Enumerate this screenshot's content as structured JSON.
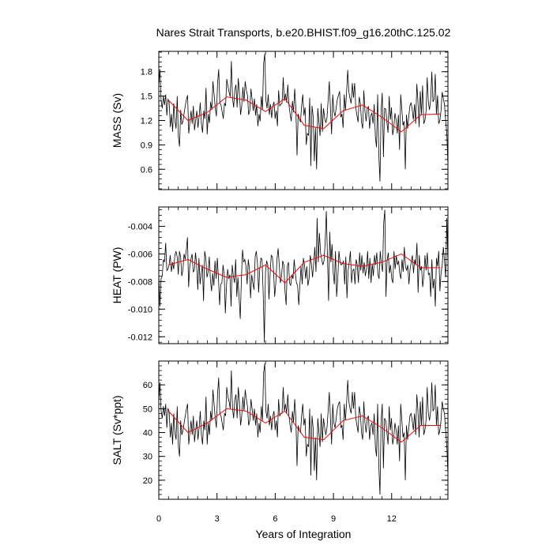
{
  "title": "Nares Strait Transports, b.e20.BHIST.f09_g16.20thC.125.02",
  "xlabel": "Years of Integration",
  "colors": {
    "monthly": "#000000",
    "annual": "#ff0000",
    "frame": "#000000"
  },
  "chart_data": [
    {
      "type": "line",
      "ylabel": "MASS (Sv)",
      "xlim": [
        0,
        14.9
      ],
      "ylim": [
        0.35,
        2.05
      ],
      "yticks": [
        "0.6",
        "0.9",
        "1.2",
        "1.5",
        "1.8"
      ],
      "xticks": [
        "0",
        "3",
        "6",
        "9",
        "12"
      ],
      "monthly_values": [
        1.62,
        1.83,
        1.45,
        1.35,
        1.5,
        1.39,
        1.52,
        1.26,
        1.46,
        1.43,
        1.12,
        1.28,
        1.06,
        1.41,
        1.2,
        1.1,
        1.5,
        1.0,
        0.88,
        1.33,
        1.15,
        1.19,
        1.29,
        1.38,
        1.46,
        1.51,
        1.04,
        1.18,
        1.32,
        1.16,
        1.38,
        1.08,
        1.2,
        1.32,
        1.11,
        1.25,
        1.42,
        1.16,
        1.05,
        1.32,
        1.22,
        1.6,
        1.03,
        1.28,
        1.17,
        1.43,
        1.33,
        1.68,
        1.52,
        1.36,
        1.25,
        1.65,
        1.83,
        1.42,
        1.39,
        1.31,
        1.22,
        1.41,
        1.38,
        1.71,
        1.62,
        1.55,
        1.49,
        1.93,
        1.48,
        1.36,
        1.58,
        1.64,
        1.36,
        1.72,
        1.54,
        1.27,
        1.38,
        1.61,
        1.43,
        1.68,
        1.57,
        1.51,
        1.27,
        1.32,
        1.59,
        1.46,
        1.32,
        1.47,
        1.26,
        1.4,
        1.13,
        1.28,
        1.19,
        1.5,
        1.33,
        1.9,
        2.02,
        1.45,
        1.35,
        1.52,
        1.27,
        1.4,
        1.23,
        1.38,
        1.43,
        1.22,
        1.32,
        1.13,
        1.57,
        1.38,
        1.4,
        1.41,
        1.73,
        1.44,
        1.53,
        1.42,
        1.64,
        1.39,
        1.28,
        1.19,
        1.44,
        1.3,
        1.59,
        1.35,
        0.77,
        1.28,
        1.22,
        1.18,
        1.38,
        1.52,
        1.26,
        1.36,
        0.9,
        1.04,
        1.02,
        1.48,
        0.64,
        1.38,
        1.25,
        0.7,
        1.11,
        0.6,
        1.35,
        1.18,
        1.01,
        1.41,
        1.06,
        1.35,
        1.23,
        1.17,
        1.23,
        1.45,
        1.68,
        1.35,
        1.03,
        1.52,
        1.31,
        1.25,
        1.36,
        1.46,
        1.51,
        1.56,
        1.24,
        1.28,
        1.11,
        1.52,
        1.32,
        1.54,
        1.82,
        1.55,
        1.47,
        1.41,
        1.66,
        1.48,
        1.66,
        1.36,
        1.26,
        1.18,
        1.49,
        1.41,
        1.18,
        1.1,
        1.57,
        1.31,
        1.19,
        1.35,
        1.37,
        1.1,
        1.26,
        1.29,
        1.16,
        1.4,
        1.0,
        0.87,
        1.52,
        0.78,
        0.45,
        1.32,
        1.54,
        0.75,
        1.35,
        1.34,
        1.18,
        1.05,
        1.5,
        1.21,
        1.36,
        1.02,
        1.11,
        1.29,
        1.21,
        1.04,
        1.27,
        0.84,
        1.52,
        1.33,
        1.14,
        1.19,
        0.6,
        1.27,
        1.1,
        1.25,
        1.38,
        1.42,
        1.33,
        1.21,
        1.4,
        1.16,
        1.65,
        1.43,
        1.12,
        1.56,
        1.27,
        1.63,
        1.16,
        1.2,
        1.31,
        1.73,
        1.42,
        1.33,
        1.45,
        1.8,
        1.43,
        1.46,
        1.77,
        1.27,
        1.51,
        1.16,
        1.2,
        1.32,
        1.55,
        1.47,
        1.4,
        1.2,
        1.05,
        0.65
      ],
      "annual_x": [
        0.5,
        1.5,
        2.5,
        3.5,
        4.5,
        5.5,
        6.5,
        7.5,
        8.5,
        9.5,
        10.5,
        11.5,
        12.5,
        13.5,
        14.5
      ],
      "annual_values": [
        1.45,
        1.2,
        1.3,
        1.49,
        1.45,
        1.31,
        1.47,
        1.14,
        1.1,
        1.32,
        1.39,
        1.24,
        1.06,
        1.27,
        1.28
      ]
    },
    {
      "type": "line",
      "ylabel": "HEAT (PW)",
      "xlim": [
        0,
        14.9
      ],
      "ylim": [
        -0.0125,
        -0.0026
      ],
      "yticks": [
        "-0.012",
        "-0.010",
        "-0.008",
        "-0.006",
        "-0.004"
      ],
      "xticks": [
        "0",
        "3",
        "6",
        "9",
        "12"
      ],
      "monthly_values": [
        -0.0075,
        -0.0098,
        -0.0078,
        -0.0076,
        -0.0064,
        -0.0066,
        -0.0052,
        -0.0072,
        -0.0071,
        -0.0068,
        -0.0061,
        -0.0073,
        -0.0066,
        -0.0071,
        -0.0061,
        -0.0058,
        -0.0062,
        -0.0075,
        -0.0058,
        -0.0062,
        -0.0076,
        -0.0072,
        -0.006,
        -0.0064,
        -0.0057,
        -0.0048,
        -0.0084,
        -0.0069,
        -0.0064,
        -0.006,
        -0.0073,
        -0.0072,
        -0.0059,
        -0.0068,
        -0.0086,
        -0.0063,
        -0.0082,
        -0.0074,
        -0.0068,
        -0.0094,
        -0.0058,
        -0.0063,
        -0.0077,
        -0.0073,
        -0.0062,
        -0.0079,
        -0.0087,
        -0.0074,
        -0.0083,
        -0.0065,
        -0.0078,
        -0.0063,
        -0.0077,
        -0.0097,
        -0.0082,
        -0.0081,
        -0.0068,
        -0.0075,
        -0.0103,
        -0.0083,
        -0.0071,
        -0.0078,
        -0.0075,
        -0.0098,
        -0.0068,
        -0.0076,
        -0.0081,
        -0.0064,
        -0.0091,
        -0.0077,
        -0.0092,
        -0.0107,
        -0.0078,
        -0.0057,
        -0.0066,
        -0.0064,
        -0.0069,
        -0.0082,
        -0.0064,
        -0.0071,
        -0.0092,
        -0.0075,
        -0.0081,
        -0.0086,
        -0.0062,
        -0.0058,
        -0.0067,
        -0.0088,
        -0.0071,
        -0.0063,
        -0.0064,
        -0.0089,
        -0.0124,
        -0.0073,
        -0.0065,
        -0.0068,
        -0.0093,
        -0.0075,
        -0.0061,
        -0.0062,
        -0.0072,
        -0.0091,
        -0.0081,
        -0.0064,
        -0.0056,
        -0.0068,
        -0.0081,
        -0.0076,
        -0.0065,
        -0.0068,
        -0.0087,
        -0.0097,
        -0.0069,
        -0.0066,
        -0.0081,
        -0.0083,
        -0.0075,
        -0.0078,
        -0.0064,
        -0.0074,
        -0.0081,
        -0.0083,
        -0.0097,
        -0.0082,
        -0.0069,
        -0.0082,
        -0.0063,
        -0.0068,
        -0.0078,
        -0.0069,
        -0.0083,
        -0.0078,
        -0.0061,
        -0.0067,
        -0.0077,
        -0.0067,
        -0.0055,
        -0.0073,
        -0.0034,
        -0.0066,
        -0.0045,
        -0.0059,
        -0.0064,
        -0.0068,
        -0.0065,
        -0.0052,
        -0.0029,
        -0.0062,
        -0.0094,
        -0.0044,
        -0.0066,
        -0.0053,
        -0.0073,
        -0.0082,
        -0.0058,
        -0.0091,
        -0.0078,
        -0.0058,
        -0.0066,
        -0.0068,
        -0.0067,
        -0.0065,
        -0.0082,
        -0.0062,
        -0.0092,
        -0.0072,
        -0.0066,
        -0.0058,
        -0.0081,
        -0.0072,
        -0.0071,
        -0.0082,
        -0.0064,
        -0.0068,
        -0.0081,
        -0.0059,
        -0.0072,
        -0.0061,
        -0.0074,
        -0.0066,
        -0.0076,
        -0.0071,
        -0.0058,
        -0.0078,
        -0.0063,
        -0.0081,
        -0.0067,
        -0.0076,
        -0.0061,
        -0.0068,
        -0.0059,
        -0.0075,
        -0.0078,
        -0.0058,
        -0.0067,
        -0.0073,
        -0.0038,
        -0.0028,
        -0.0091,
        -0.0065,
        -0.0059,
        -0.0074,
        -0.0068,
        -0.0078,
        -0.0081,
        -0.0058,
        -0.0071,
        -0.0061,
        -0.0068,
        -0.0065,
        -0.0074,
        -0.0078,
        -0.0064,
        -0.0073,
        -0.0055,
        -0.0069,
        -0.0072,
        -0.0068,
        -0.0082,
        -0.0071,
        -0.0066,
        -0.0061,
        -0.0074,
        -0.0064,
        -0.0068,
        -0.0052,
        -0.0088,
        -0.0061,
        -0.0072,
        -0.0069,
        -0.0084,
        -0.0076,
        -0.0061,
        -0.0072,
        -0.0059,
        -0.0075,
        -0.0074,
        -0.0091,
        -0.0064,
        -0.0085,
        -0.0078,
        -0.0098,
        -0.0063,
        -0.0069,
        -0.0058,
        -0.0087,
        -0.0074,
        -0.0068,
        -0.0055,
        -0.0065,
        -0.0077,
        -0.0034,
        -0.0067
      ],
      "annual_x": [
        0.5,
        1.5,
        2.5,
        3.5,
        4.5,
        5.5,
        6.5,
        7.5,
        8.5,
        9.5,
        10.5,
        11.5,
        12.5,
        13.5,
        14.5
      ],
      "annual_values": [
        -0.0068,
        -0.0064,
        -0.0071,
        -0.0077,
        -0.0075,
        -0.0068,
        -0.0081,
        -0.0066,
        -0.0061,
        -0.0067,
        -0.0069,
        -0.0066,
        -0.006,
        -0.007,
        -0.007
      ]
    },
    {
      "type": "line",
      "ylabel": "SALT (Sv*ppt)",
      "xlim": [
        0,
        14.9
      ],
      "ylim": [
        12,
        70
      ],
      "yticks": [
        "20",
        "30",
        "40",
        "50",
        "60"
      ],
      "xticks": [
        "0",
        "3",
        "6",
        "9",
        "12"
      ],
      "monthly_values": [
        53,
        61,
        49,
        46,
        51,
        47,
        52,
        42,
        50,
        49,
        38,
        44,
        35,
        48,
        40,
        37,
        51,
        34,
        30,
        45,
        39,
        41,
        44,
        47,
        50,
        52,
        35,
        40,
        45,
        39,
        47,
        36,
        41,
        45,
        37,
        42,
        49,
        39,
        35,
        45,
        41,
        55,
        35,
        44,
        39,
        49,
        45,
        58,
        52,
        46,
        42,
        56,
        63,
        48,
        47,
        44,
        41,
        48,
        47,
        59,
        55,
        53,
        50,
        66,
        50,
        46,
        54,
        56,
        46,
        59,
        53,
        43,
        47,
        55,
        49,
        58,
        54,
        51,
        43,
        45,
        54,
        50,
        45,
        50,
        43,
        48,
        38,
        44,
        40,
        51,
        45,
        65,
        69,
        49,
        46,
        52,
        43,
        47,
        41,
        47,
        49,
        41,
        45,
        38,
        54,
        47,
        48,
        48,
        59,
        49,
        52,
        48,
        56,
        47,
        43,
        40,
        49,
        44,
        54,
        46,
        26,
        43,
        41,
        40,
        47,
        52,
        43,
        46,
        30,
        35,
        34,
        50,
        22,
        47,
        42,
        24,
        38,
        20,
        46,
        40,
        34,
        48,
        36,
        46,
        42,
        39,
        42,
        49,
        57,
        46,
        35,
        52,
        44,
        42,
        46,
        50,
        52,
        53,
        42,
        43,
        37,
        52,
        45,
        52,
        62,
        53,
        50,
        48,
        57,
        50,
        57,
        46,
        43,
        40,
        51,
        48,
        40,
        37,
        53,
        44,
        40,
        46,
        47,
        37,
        43,
        44,
        39,
        48,
        34,
        30,
        52,
        26,
        14,
        45,
        52,
        25,
        46,
        45,
        40,
        35,
        51,
        41,
        46,
        35,
        38,
        44,
        41,
        35,
        43,
        28,
        52,
        45,
        38,
        40,
        20,
        43,
        37,
        42,
        47,
        48,
        45,
        41,
        48,
        39,
        56,
        49,
        38,
        53,
        43,
        55,
        39,
        41,
        45,
        59,
        48,
        45,
        49,
        61,
        49,
        50,
        60,
        43,
        51,
        39,
        41,
        45,
        53,
        50,
        48,
        41,
        35,
        22
      ],
      "annual_x": [
        0.5,
        1.5,
        2.5,
        3.5,
        4.5,
        5.5,
        6.5,
        7.5,
        8.5,
        9.5,
        10.5,
        11.5,
        12.5,
        13.5,
        14.5
      ],
      "annual_values": [
        49,
        40,
        44,
        50,
        49,
        44,
        49,
        38,
        37,
        45,
        47,
        42,
        36,
        43,
        43
      ]
    }
  ]
}
